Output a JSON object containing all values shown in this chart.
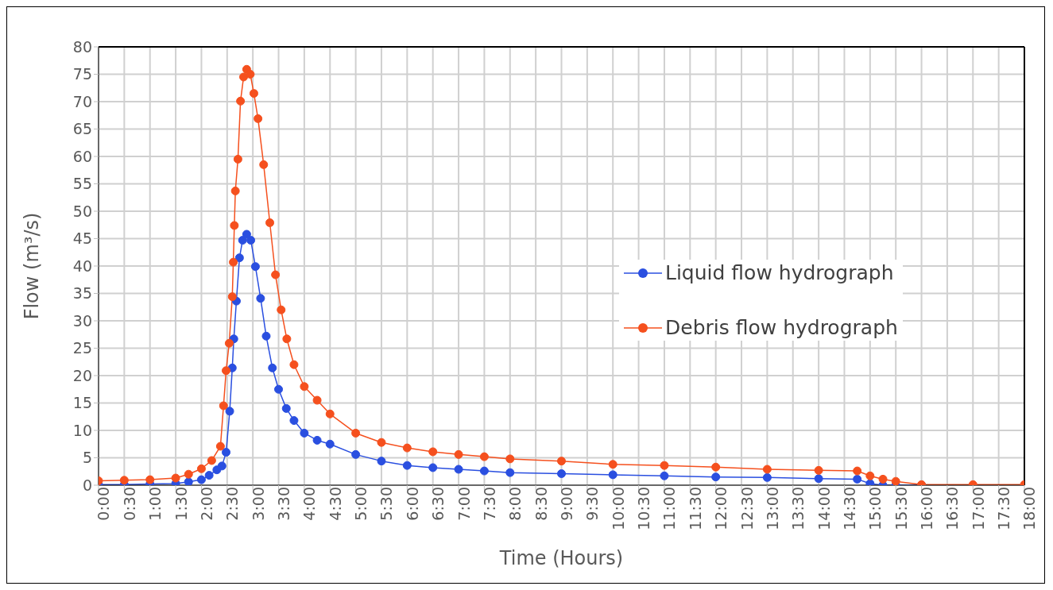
{
  "chart_data": {
    "type": "line",
    "xlabel": "Time (Hours)",
    "ylabel": "Flow (m³/s)",
    "xlim": [
      0,
      18
    ],
    "ylim": [
      0,
      80
    ],
    "yticks": [
      0,
      5,
      10,
      15,
      20,
      25,
      30,
      35,
      40,
      45,
      50,
      55,
      60,
      65,
      70,
      75,
      80
    ],
    "xticks": [
      {
        "value": 0,
        "label": "0:00"
      },
      {
        "value": 0.5,
        "label": "0:30"
      },
      {
        "value": 1,
        "label": "1:00"
      },
      {
        "value": 1.5,
        "label": "1:30"
      },
      {
        "value": 2,
        "label": "2:00"
      },
      {
        "value": 2.5,
        "label": "2:30"
      },
      {
        "value": 3,
        "label": "3:00"
      },
      {
        "value": 3.5,
        "label": "3:30"
      },
      {
        "value": 4,
        "label": "4:00"
      },
      {
        "value": 4.5,
        "label": "4:30"
      },
      {
        "value": 5,
        "label": "5:00"
      },
      {
        "value": 5.5,
        "label": "5:30"
      },
      {
        "value": 6,
        "label": "6:00"
      },
      {
        "value": 6.5,
        "label": "6:30"
      },
      {
        "value": 7,
        "label": "7:00"
      },
      {
        "value": 7.5,
        "label": "7:30"
      },
      {
        "value": 8,
        "label": "8:00"
      },
      {
        "value": 8.5,
        "label": "8:30"
      },
      {
        "value": 9,
        "label": "9:00"
      },
      {
        "value": 9.5,
        "label": "9:30"
      },
      {
        "value": 10,
        "label": "10:00"
      },
      {
        "value": 10.5,
        "label": "10:30"
      },
      {
        "value": 11,
        "label": "11:00"
      },
      {
        "value": 11.5,
        "label": "11:30"
      },
      {
        "value": 12,
        "label": "12:00"
      },
      {
        "value": 12.5,
        "label": "12:30"
      },
      {
        "value": 13,
        "label": "13:00"
      },
      {
        "value": 13.5,
        "label": "13:30"
      },
      {
        "value": 14,
        "label": "14:00"
      },
      {
        "value": 14.5,
        "label": "14:30"
      },
      {
        "value": 15,
        "label": "15:00"
      },
      {
        "value": 15.5,
        "label": "15:30"
      },
      {
        "value": 16,
        "label": "16:00"
      },
      {
        "value": 16.5,
        "label": "16:30"
      },
      {
        "value": 17,
        "label": "17:00"
      },
      {
        "value": 17.5,
        "label": "17:30"
      },
      {
        "value": 18,
        "label": "18:00"
      }
    ],
    "grid": true,
    "legend": "right",
    "marker": "circle",
    "line_style": "solid",
    "series": [
      {
        "name": "Liquid flow hydrograph",
        "color": "#2a4fe0",
        "x": [
          0,
          0.5,
          1,
          1.5,
          1.75,
          2,
          2.15,
          2.3,
          2.4,
          2.48,
          2.55,
          2.6,
          2.63,
          2.68,
          2.74,
          2.8,
          2.88,
          2.96,
          3.05,
          3.15,
          3.26,
          3.38,
          3.5,
          3.65,
          3.8,
          4,
          4.25,
          4.5,
          5,
          5.5,
          6,
          6.5,
          7,
          7.5,
          8,
          9,
          10,
          11,
          12,
          13,
          14,
          14.75,
          15,
          15.25,
          15.5,
          16
        ],
        "values": [
          0.1,
          0.1,
          0.2,
          0.3,
          0.6,
          1,
          1.8,
          2.8,
          3.5,
          6,
          13.5,
          21.4,
          26.7,
          33.6,
          41.5,
          44.7,
          45.8,
          44.7,
          39.9,
          34.1,
          27.2,
          21.4,
          17.5,
          14,
          11.8,
          9.5,
          8.2,
          7.5,
          5.6,
          4.4,
          3.6,
          3.2,
          2.9,
          2.6,
          2.3,
          2.1,
          1.9,
          1.7,
          1.5,
          1.4,
          1.2,
          1.1,
          0.3,
          0,
          0,
          0
        ]
      },
      {
        "name": "Debris flow hydrograph",
        "color": "#f5501e",
        "x": [
          0,
          0.5,
          1,
          1.5,
          1.75,
          2,
          2.2,
          2.37,
          2.43,
          2.48,
          2.54,
          2.6,
          2.62,
          2.64,
          2.66,
          2.71,
          2.76,
          2.82,
          2.88,
          2.95,
          3.02,
          3.1,
          3.21,
          3.33,
          3.44,
          3.55,
          3.66,
          3.8,
          4,
          4.25,
          4.5,
          5,
          5.5,
          6,
          6.5,
          7,
          7.5,
          8,
          9,
          10,
          11,
          12,
          13,
          14,
          14.75,
          15,
          15.25,
          15.5,
          16,
          17,
          18
        ],
        "values": [
          0.8,
          0.9,
          1,
          1.3,
          2,
          3,
          4.5,
          7.1,
          14.5,
          20.9,
          25.9,
          34.4,
          40.7,
          47.4,
          53.7,
          59.5,
          70.1,
          74.5,
          75.9,
          75,
          71.5,
          66.9,
          58.5,
          47.9,
          38.4,
          32,
          26.7,
          22,
          18,
          15.5,
          13,
          9.5,
          7.8,
          6.8,
          6.1,
          5.6,
          5.2,
          4.8,
          4.4,
          3.8,
          3.6,
          3.3,
          2.9,
          2.7,
          2.6,
          1.7,
          1.1,
          0.7,
          0.1,
          0.1,
          0.1
        ]
      }
    ]
  }
}
